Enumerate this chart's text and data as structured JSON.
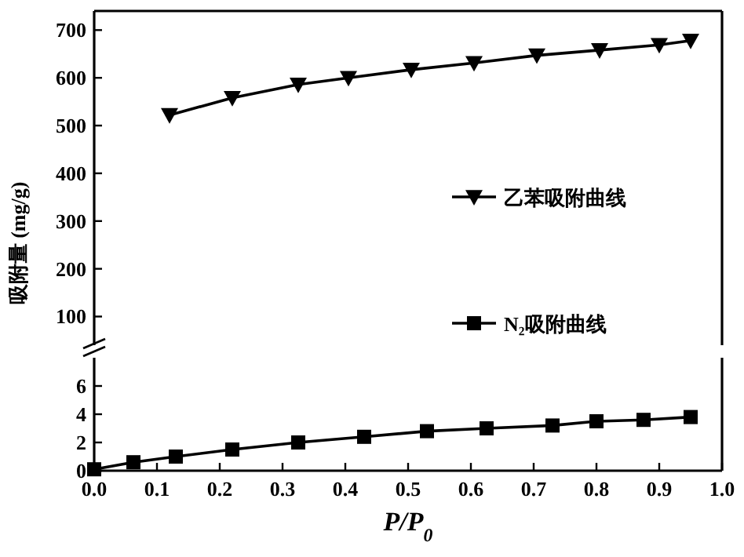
{
  "chart_data": [
    {
      "type": "line",
      "ylabel": "吸附量 (mg/g)",
      "xlim": [
        0,
        1
      ],
      "ylim": [
        40,
        740
      ],
      "yticks": [
        100,
        200,
        300,
        400,
        500,
        600,
        700
      ],
      "tick_labels": "y",
      "legend": "right",
      "marker": "triangle",
      "line_style": "solid",
      "series": [
        {
          "name": "乙苯吸附曲线",
          "color": "#000000",
          "x": [
            0.12,
            0.22,
            0.325,
            0.405,
            0.505,
            0.605,
            0.705,
            0.805,
            0.9,
            0.95
          ],
          "values": [
            522,
            558,
            586,
            600,
            617,
            631,
            647,
            658,
            669,
            678
          ]
        }
      ]
    },
    {
      "type": "line",
      "xlabel": "P/P$_{0}$",
      "xlim": [
        0,
        1
      ],
      "ylim": [
        0,
        8
      ],
      "xticks": [
        {
          "value": 0,
          "label": "0.0"
        },
        0.1,
        0.2,
        0.3,
        0.4,
        0.5,
        0.6,
        0.7,
        0.8,
        0.9,
        {
          "value": 1,
          "label": "1.0"
        }
      ],
      "yticks": [
        0,
        2,
        4,
        6
      ],
      "legend": "top",
      "marker": "square",
      "line_style": "solid",
      "series": [
        {
          "name": "N₂吸附曲线",
          "color": "#000000",
          "x": [
            0,
            0.0625,
            0.13,
            0.22,
            0.325,
            0.43,
            0.53,
            0.625,
            0.73,
            0.8,
            0.875,
            0.95
          ],
          "values": [
            0.1,
            0.6,
            1.0,
            1.5,
            2.0,
            2.4,
            2.8,
            3.0,
            3.2,
            3.5,
            3.6,
            3.8
          ]
        }
      ]
    }
  ]
}
